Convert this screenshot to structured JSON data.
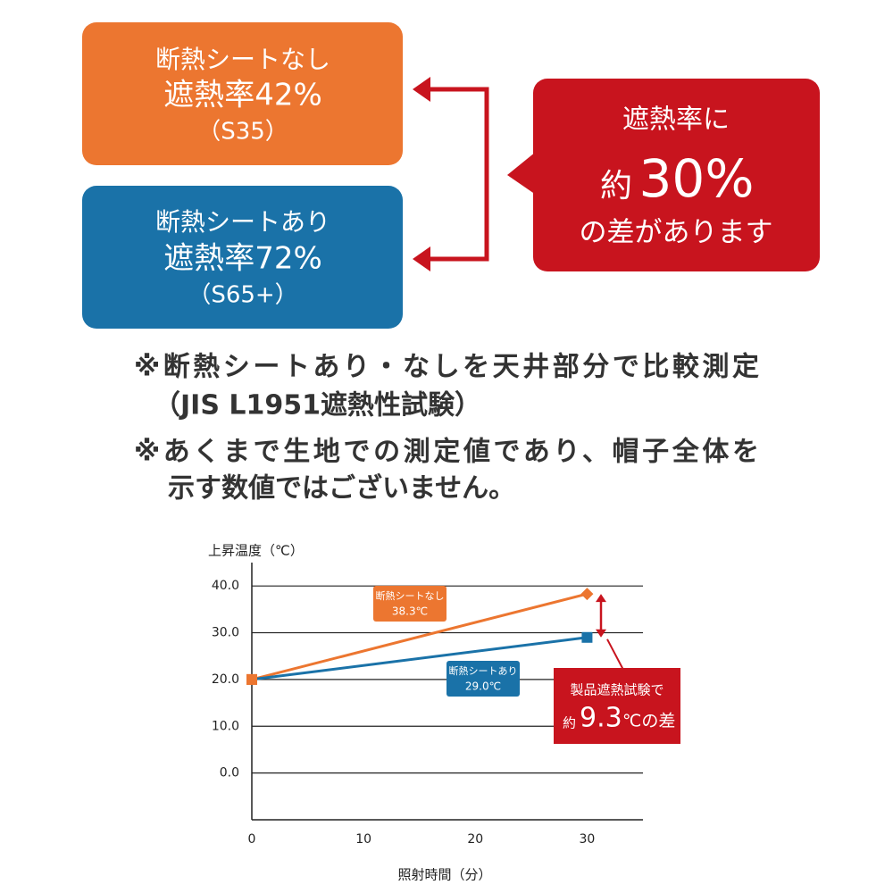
{
  "boxes": [
    {
      "lines": [
        "断熱シートなし",
        "遮熱率42%",
        "（S35）"
      ]
    },
    {
      "lines": [
        "断熱シートあり",
        "遮熱率72%",
        "（S65+）"
      ]
    }
  ],
  "callout": {
    "line1": "遮熱率に",
    "prefix": "約",
    "big": "30%",
    "line3": "の差があります"
  },
  "notes": [
    "※断熱シートあり・なしを天井部分で比較測定",
    "（JIS L1951遮熱性試験）",
    "※あくまで生地での測定値であり、帽子全体を",
    "示す数値ではございません。"
  ],
  "chart_data": {
    "type": "line",
    "y_label": "上昇温度（℃）",
    "x_label": "照射時間（分）",
    "x": [
      0,
      30
    ],
    "series": [
      {
        "name": "断熱シートなし",
        "color": "#ec7630",
        "values": [
          20,
          38.3
        ],
        "value_labels": [
          null,
          "38.3℃"
        ]
      },
      {
        "name": "断熱シートあり",
        "color": "#1a72a8",
        "values": [
          20,
          29.0
        ],
        "value_labels": [
          null,
          "29.0℃"
        ]
      }
    ],
    "xlim": [
      0,
      35
    ],
    "xticks": [
      0,
      10,
      20,
      30
    ],
    "ylim": [
      -10,
      45
    ],
    "yticks": [
      {
        "value": 0,
        "label": "0.0"
      },
      {
        "value": 10,
        "label": "10.0"
      },
      {
        "value": 20,
        "label": "20.0"
      },
      {
        "value": 30,
        "label": "30.0"
      },
      {
        "value": 40,
        "label": "40.0"
      }
    ],
    "grid": true,
    "annotation": {
      "line1": "製品遮熱試験で",
      "prefix": "約",
      "value": 9.3,
      "suffix": "℃の差"
    }
  }
}
